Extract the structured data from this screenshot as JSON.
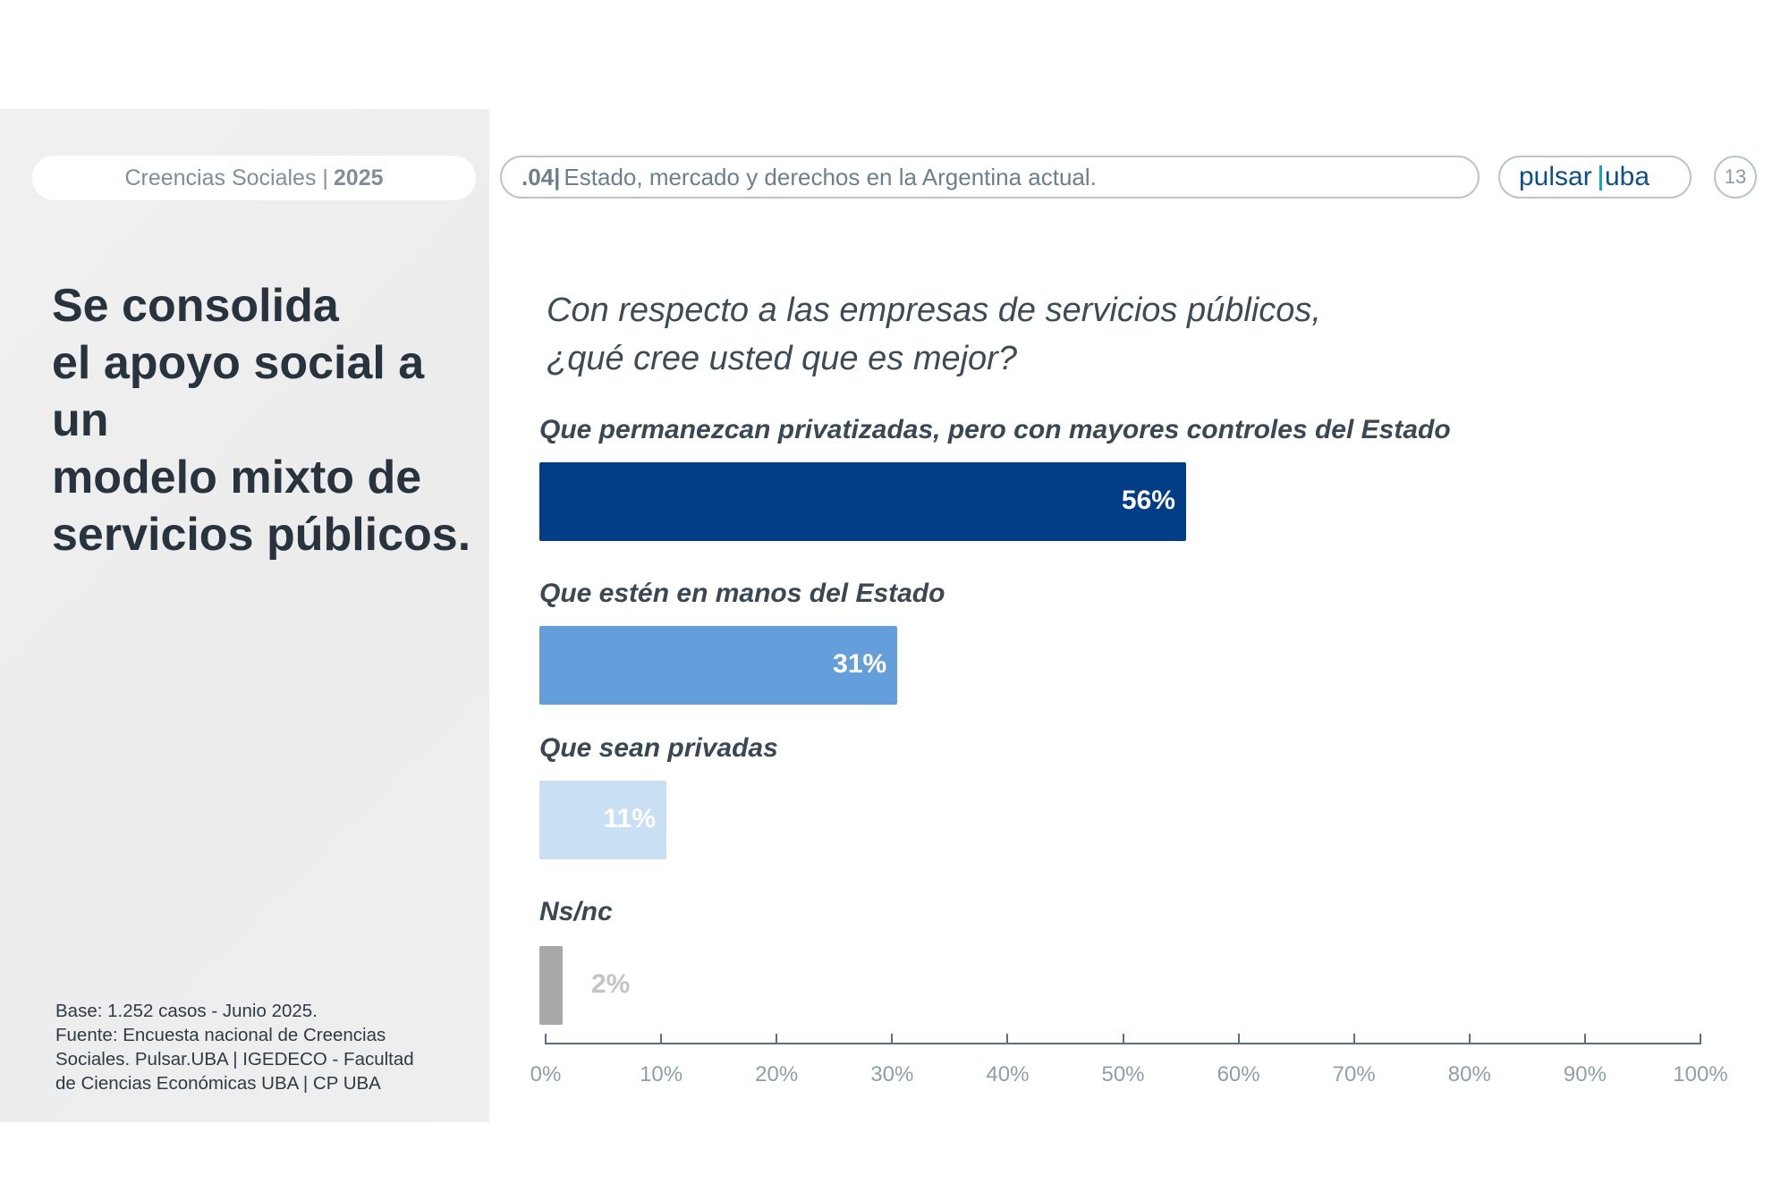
{
  "header": {
    "series_name": "Creencias Sociales |",
    "series_year": "2025",
    "section_number": ".04|",
    "section_title": "Estado, mercado y derechos en la Argentina actual.",
    "logo_text": "pulsar|uba",
    "page_number": "13"
  },
  "headline": {
    "line1": "Se consolida",
    "line2": "el apoyo social a un",
    "line3": "modelo mixto de",
    "line4": "servicios públicos."
  },
  "source": {
    "line1": "Base: 1.252 casos - Junio 2025.",
    "line2": "Fuente: Encuesta nacional de Creencias",
    "line3": "Sociales. Pulsar.UBA | IGEDECO - Facultad",
    "line4": "de Ciencias Económicas UBA | CP UBA"
  },
  "question": {
    "line1": "Con respecto a las empresas de servicios públicos,",
    "line2": "¿qué cree usted que es mejor?"
  },
  "colors": {
    "bar1": "#023d87",
    "bar2": "#649fdb",
    "bar3": "#c9dff4",
    "bar4": "#a8a8a8",
    "value_dark": "#c4c4c4"
  },
  "chart_data": {
    "type": "bar",
    "orientation": "horizontal",
    "title": "Con respecto a las empresas de servicios públicos, ¿qué cree usted que es mejor?",
    "categories": [
      "Que permanezcan privatizadas, pero con mayores controles del Estado",
      "Que estén en manos del Estado",
      "Que sean privadas",
      "Ns/nc"
    ],
    "values": [
      56,
      31,
      11,
      2
    ],
    "value_labels": [
      "56%",
      "31%",
      "11%",
      "2%"
    ],
    "xlim": [
      0,
      100
    ],
    "x_ticks": [
      "0%",
      "10%",
      "20%",
      "30%",
      "40%",
      "50%",
      "60%",
      "70%",
      "80%",
      "90%",
      "100%"
    ],
    "grid": false
  }
}
